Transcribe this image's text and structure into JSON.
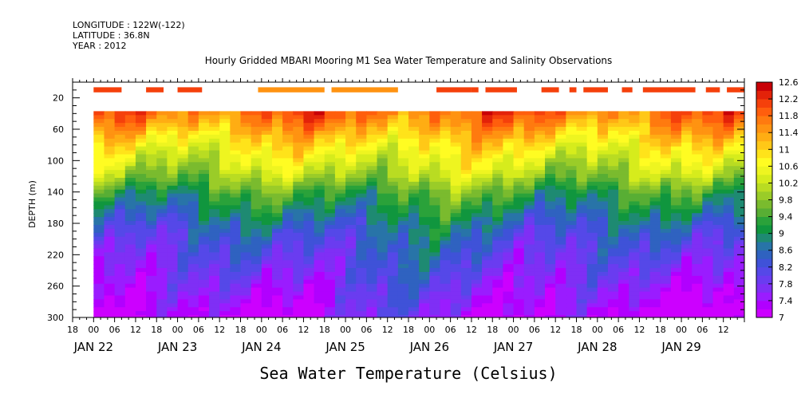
{
  "header": {
    "longitude": "LONGITUDE : 122W(-122)",
    "latitude": "LATITUDE : 36.8N",
    "year": "YEAR : 2012"
  },
  "chart_data": {
    "type": "heatmap",
    "title": "Hourly Gridded MBARI Mooring M1 Sea Water Temperature and Salinity Observations",
    "xlabel": "",
    "ylabel": "DEPTH (m)",
    "colorbar_label": "Sea Water Temperature (Celsius)",
    "x_range": [
      "2012-01-21 18:00",
      "2012-01-29 18:00"
    ],
    "data_start": "2012-01-22 00:00",
    "y_range": [
      0,
      300
    ],
    "y_ticks": [
      20,
      60,
      100,
      140,
      180,
      220,
      260,
      300
    ],
    "x_hour_ticks": [
      "18",
      "00",
      "06",
      "12",
      "18",
      "00",
      "06",
      "12",
      "18",
      "00",
      "06",
      "12",
      "18",
      "00",
      "06",
      "12",
      "18",
      "00",
      "06",
      "12",
      "18",
      "00",
      "06",
      "12",
      "18",
      "00",
      "06",
      "12",
      "18",
      "00",
      "06",
      "12"
    ],
    "x_day_labels": [
      {
        "label": "JAN 22",
        "day_index": 0
      },
      {
        "label": "JAN 23",
        "day_index": 1
      },
      {
        "label": "JAN 24",
        "day_index": 2
      },
      {
        "label": "JAN 25",
        "day_index": 3
      },
      {
        "label": "JAN 26",
        "day_index": 4
      },
      {
        "label": "JAN 27",
        "day_index": 5
      },
      {
        "label": "JAN 28",
        "day_index": 6
      },
      {
        "label": "JAN 29",
        "day_index": 7
      }
    ],
    "color_levels": [
      7,
      7.2,
      7.4,
      7.6,
      7.8,
      8.0,
      8.2,
      8.4,
      8.6,
      8.8,
      9.0,
      9.2,
      9.4,
      9.6,
      9.8,
      10.0,
      10.2,
      10.4,
      10.6,
      10.8,
      11.0,
      11.2,
      11.4,
      11.6,
      11.8,
      12.0,
      12.2,
      12.4,
      12.6
    ],
    "colorbar_tick_labels": [
      "12.6",
      "12.2",
      "11.8",
      "11.4",
      "11",
      "10.6",
      "10.2",
      "9.8",
      "9.4",
      "9",
      "8.6",
      "8.2",
      "7.8",
      "7.4",
      "7"
    ],
    "depth_profile": {
      "depth": [
        40,
        60,
        80,
        100,
        120,
        140,
        160,
        180,
        200,
        220,
        240,
        260,
        280,
        300
      ],
      "temperature": [
        11.8,
        11.3,
        10.8,
        10.4,
        10.0,
        9.4,
        9.0,
        8.6,
        8.3,
        8.1,
        7.9,
        7.7,
        7.5,
        7.3
      ]
    },
    "surface_band": {
      "depth": 10,
      "approx_temperature": 12.2
    },
    "grid": false,
    "legend": "right"
  }
}
